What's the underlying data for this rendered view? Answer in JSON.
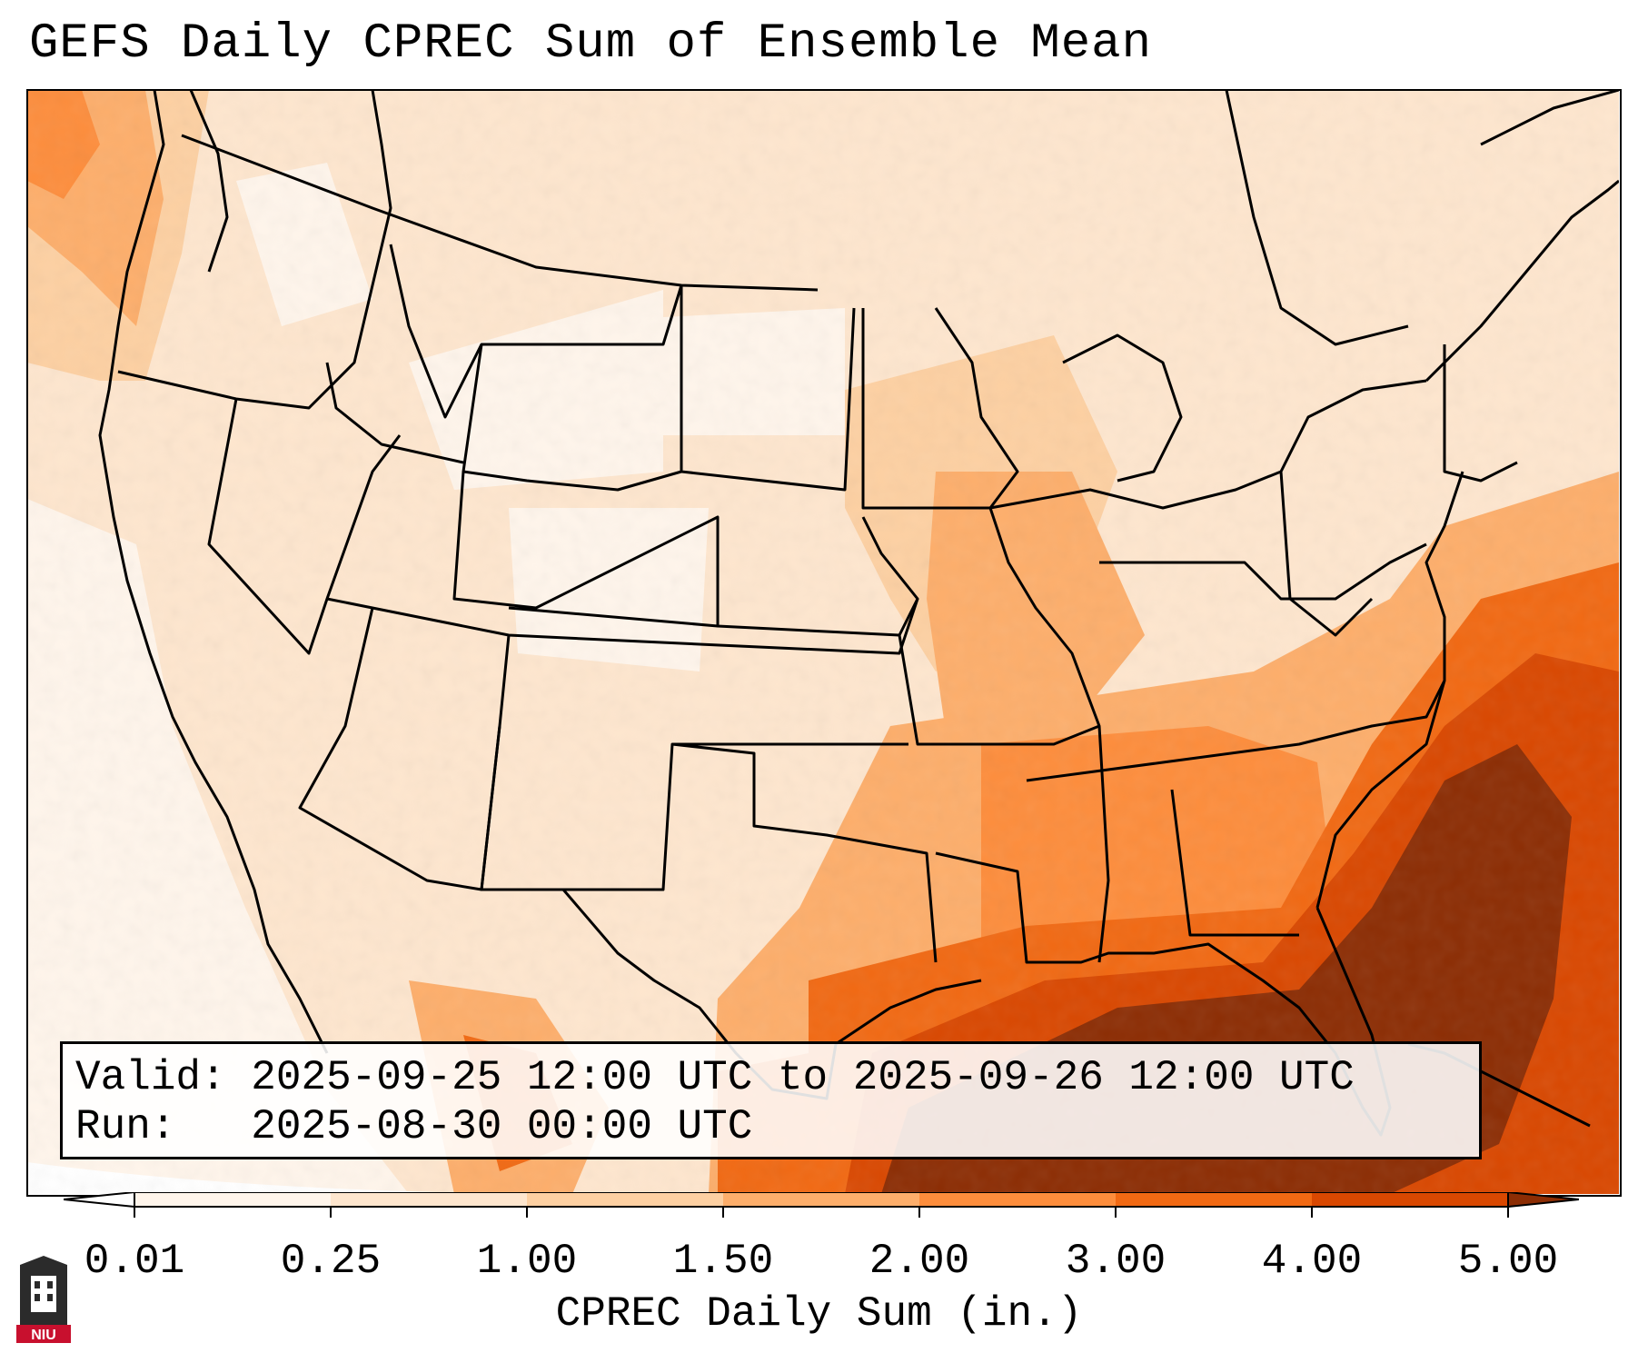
{
  "title": "GEFS Daily CPREC Sum of Ensemble Mean",
  "info": {
    "valid_label": "Valid:",
    "valid_value": "2025-09-25 12:00 UTC to 2025-09-26 12:00 UTC",
    "run_label": "Run:",
    "run_value": "2025-08-30 00:00 UTC"
  },
  "colorbar": {
    "label": "CPREC Daily Sum (in.)",
    "ticks": [
      "0.01",
      "0.25",
      "1.00",
      "1.50",
      "2.00",
      "3.00",
      "4.00",
      "5.00"
    ],
    "colors": [
      "#fff5eb",
      "#fee6ce",
      "#fdd0a2",
      "#fdae6b",
      "#fd8d3c",
      "#f16913",
      "#d94801",
      "#8c2d04"
    ],
    "under_color": "#ffffff",
    "over_color": "#8c2d04"
  },
  "logo": {
    "text": "NIU",
    "color": "#c8102e"
  }
}
